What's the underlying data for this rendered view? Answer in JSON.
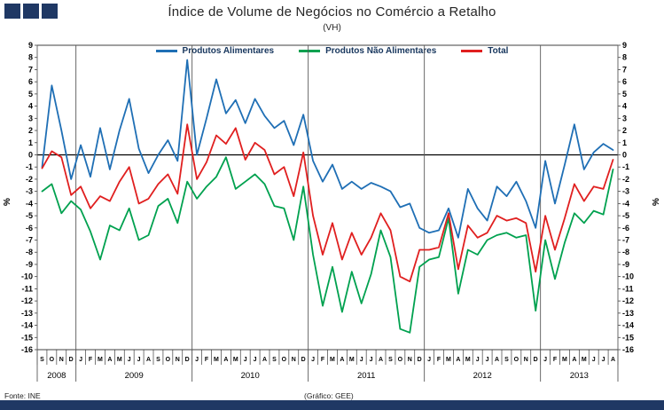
{
  "title": "Índice de Volume de Negócios no Comércio a Retalho",
  "subtitle": "(VH)",
  "footer": {
    "source": "Fonte: INE",
    "credit": "(Gráfico:  GEE)"
  },
  "y_axis": {
    "unit_left": "%",
    "unit_right": "%"
  },
  "colors": {
    "navy": "#1f3864",
    "alimentares": "#1f6fb5",
    "nao_alimentares": "#00a14f",
    "total": "#e01f1f",
    "axis": "#404040",
    "separator": "#595959"
  },
  "chart_data": {
    "type": "line",
    "title": "Índice de Volume de Negócios no Comércio a Retalho (VH)",
    "ylabel": "%",
    "ylim": [
      -16,
      9
    ],
    "ytick_step": 1,
    "grid": false,
    "legend_position": "top",
    "x_months": [
      "S",
      "O",
      "N",
      "D",
      "J",
      "F",
      "M",
      "A",
      "M",
      "J",
      "J",
      "A",
      "S",
      "O",
      "N",
      "D",
      "J",
      "F",
      "M",
      "A",
      "M",
      "J",
      "J",
      "A",
      "S",
      "O",
      "N",
      "D",
      "J",
      "F",
      "M",
      "A",
      "M",
      "J",
      "J",
      "A",
      "S",
      "O",
      "N",
      "D",
      "J",
      "F",
      "M",
      "A",
      "M",
      "J",
      "J",
      "A",
      "S",
      "O",
      "N",
      "D",
      "J",
      "F",
      "M",
      "A",
      "M",
      "J",
      "J",
      "A"
    ],
    "year_groups": [
      {
        "year": "2008",
        "months": 4
      },
      {
        "year": "2009",
        "months": 12
      },
      {
        "year": "2010",
        "months": 12
      },
      {
        "year": "2011",
        "months": 12
      },
      {
        "year": "2012",
        "months": 12
      },
      {
        "year": "2013",
        "months": 8
      }
    ],
    "series": [
      {
        "name": "Produtos Alimentares",
        "color": "#1f6fb5",
        "values": [
          -1.0,
          5.7,
          2.0,
          -2.0,
          0.8,
          -1.8,
          2.2,
          -1.2,
          2.0,
          4.6,
          0.5,
          -1.5,
          0.0,
          1.2,
          -0.5,
          7.8,
          0.0,
          3.0,
          6.2,
          3.4,
          4.5,
          2.6,
          4.6,
          3.2,
          2.2,
          2.8,
          0.8,
          3.3,
          -0.5,
          -2.2,
          -0.8,
          -2.8,
          -2.2,
          -2.8,
          -2.3,
          -2.6,
          -3.0,
          -4.3,
          -4.0,
          -6.0,
          -6.4,
          -6.2,
          -4.4,
          -6.8,
          -2.8,
          -4.4,
          -5.4,
          -2.6,
          -3.4,
          -2.2,
          -3.8,
          -6.0,
          -0.5,
          -4.0,
          -0.8,
          2.5,
          -1.2,
          0.2,
          0.9,
          0.4
        ]
      },
      {
        "name": "Produtos Não Alimentares",
        "color": "#00a14f",
        "values": [
          -3.0,
          -2.4,
          -4.8,
          -3.8,
          -4.5,
          -6.3,
          -8.6,
          -5.8,
          -6.2,
          -4.4,
          -7.0,
          -6.6,
          -4.2,
          -3.6,
          -5.6,
          -2.2,
          -3.6,
          -2.6,
          -1.8,
          -0.2,
          -2.8,
          -2.2,
          -1.6,
          -2.4,
          -4.2,
          -4.4,
          -7.0,
          -2.6,
          -8.2,
          -12.4,
          -9.2,
          -12.9,
          -9.6,
          -12.2,
          -9.8,
          -6.2,
          -8.4,
          -14.3,
          -14.6,
          -9.2,
          -8.6,
          -8.4,
          -5.2,
          -11.4,
          -7.8,
          -8.2,
          -7.0,
          -6.6,
          -6.4,
          -6.8,
          -6.6,
          -12.8,
          -7.0,
          -10.2,
          -7.2,
          -4.8,
          -5.6,
          -4.6,
          -4.9,
          -1.2
        ]
      },
      {
        "name": "Total",
        "color": "#e01f1f",
        "values": [
          -1.1,
          0.3,
          -0.2,
          -3.3,
          -2.6,
          -4.4,
          -3.4,
          -3.8,
          -2.2,
          -1.0,
          -4.0,
          -3.6,
          -2.4,
          -1.6,
          -3.2,
          2.5,
          -2.0,
          -0.6,
          1.6,
          0.9,
          2.2,
          -0.4,
          1.0,
          0.4,
          -1.6,
          -1.0,
          -3.4,
          0.2,
          -5.0,
          -8.2,
          -5.6,
          -8.6,
          -6.4,
          -8.2,
          -6.8,
          -4.8,
          -6.2,
          -10.0,
          -10.4,
          -7.8,
          -7.8,
          -7.6,
          -4.8,
          -9.4,
          -5.8,
          -6.8,
          -6.4,
          -5.0,
          -5.4,
          -5.2,
          -5.6,
          -9.6,
          -5.0,
          -7.8,
          -5.2,
          -2.4,
          -3.8,
          -2.6,
          -2.8,
          -0.4
        ]
      }
    ]
  }
}
